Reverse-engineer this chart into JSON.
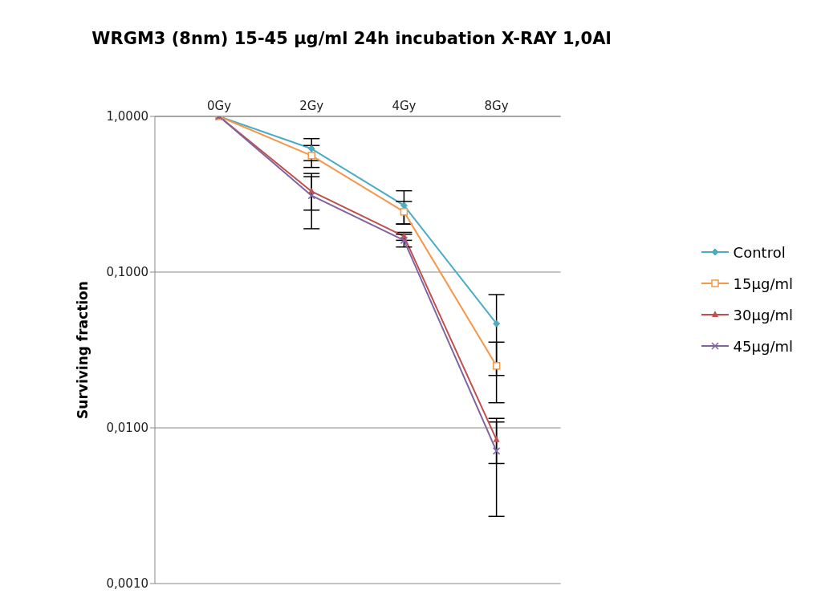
{
  "chart_data": {
    "type": "line",
    "title": "WRGM3 (8nm) 15-45 µg/ml 24h incubation X-RAY 1,0Al",
    "ylabel": "Surviving fraction",
    "categories": [
      "0Gy",
      "2Gy",
      "4Gy",
      "8Gy"
    ],
    "series": [
      {
        "name": "Control",
        "color": "#4bacc6",
        "marker": "diamond",
        "values": [
          1,
          0.62,
          0.268,
          0.0467
        ],
        "errors": [
          null,
          0.1,
          0.065,
          0.025
        ]
      },
      {
        "name": "15µg/ml",
        "color": "#f79646",
        "marker": "square",
        "values": [
          1,
          0.56,
          0.244,
          0.025
        ],
        "errors": [
          null,
          0.09,
          0.04,
          0.0105
        ]
      },
      {
        "name": "30µg/ml",
        "color": "#c0504d",
        "marker": "triangle",
        "values": [
          1,
          0.33,
          0.17,
          0.0084
        ],
        "errors": [
          null,
          0.08,
          0.01,
          0.0025
        ]
      },
      {
        "name": "45µg/ml",
        "color": "#8064a2",
        "marker": "cross",
        "values": [
          1,
          0.31,
          0.16,
          0.0071
        ],
        "errors": [
          null,
          0.12,
          0.015,
          0.0044
        ]
      }
    ],
    "log": "y",
    "ylim": [
      0.001,
      1
    ],
    "yticks": [
      {
        "value": 0.001,
        "label": "0,0010"
      },
      {
        "value": 0.01,
        "label": "0,0100"
      },
      {
        "value": 0.1,
        "label": "0,1000"
      },
      {
        "value": 1,
        "label": "1,0000"
      }
    ],
    "grid": "y",
    "legend": "right"
  }
}
